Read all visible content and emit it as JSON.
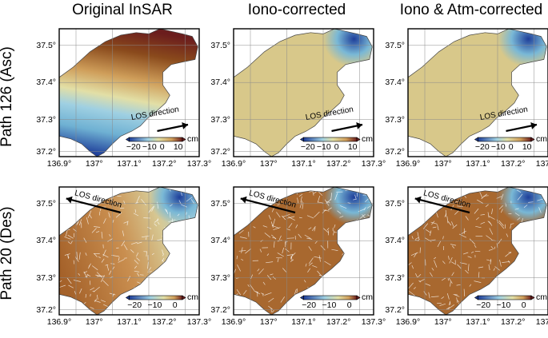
{
  "columns": [
    "Original InSAR",
    "Iono-corrected",
    "Iono & Atm-corrected"
  ],
  "rows": [
    "Path 126 (Asc)",
    "Path 20 (Des)"
  ],
  "lat_ticks": [
    "37.5°",
    "37.4°",
    "37.3°",
    "37.2°"
  ],
  "lon_ticks": [
    "136.9°",
    "137°",
    "137.1°",
    "137.2°",
    "137.3°"
  ],
  "los_label": "LOS direction",
  "colorbar": {
    "unit": "cm",
    "asc_ticks": [
      "−20",
      "−10",
      "0",
      "10"
    ],
    "des_ticks": [
      "−20",
      "−10",
      "0"
    ]
  },
  "colors": {
    "deep_blue": "#1f3f9a",
    "light_blue": "#9fd0e2",
    "neutral": "#e2dfa6",
    "tan": "#cf9e5a",
    "brown": "#8a4a1c",
    "dark_red": "#6b1d1d"
  }
}
